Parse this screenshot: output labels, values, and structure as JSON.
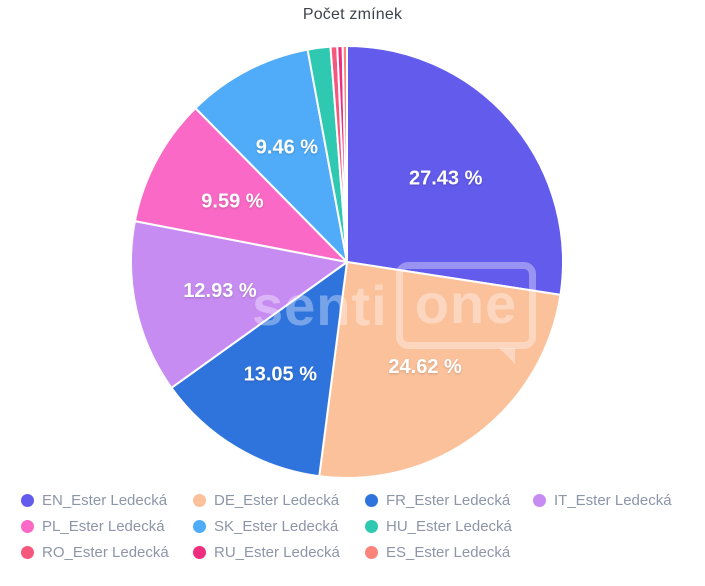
{
  "title": "Počet zmínek",
  "watermark": {
    "part1": "senti",
    "part2": "one"
  },
  "chart_data": {
    "type": "pie",
    "title": "Počet zmínek",
    "unit": "%",
    "legend_position": "bottom",
    "start_angle_deg": 0,
    "direction": "clockwise",
    "segments": [
      {
        "label": "EN_Ester Ledecká",
        "value": 27.43,
        "label_text": "27.43 %",
        "color": "#635BEB"
      },
      {
        "label": "DE_Ester Ledecká",
        "value": 24.62,
        "label_text": "24.62 %",
        "color": "#FAC19B"
      },
      {
        "label": "FR_Ester Ledecká",
        "value": 13.05,
        "label_text": "13.05 %",
        "color": "#2F74DC"
      },
      {
        "label": "IT_Ester Ledecká",
        "value": 12.93,
        "label_text": "12.93 %",
        "color": "#C78CF1"
      },
      {
        "label": "PL_Ester Ledecká",
        "value": 9.59,
        "label_text": "9.59 %",
        "color": "#F969C5"
      },
      {
        "label": "SK_Ester Ledecká",
        "value": 9.46,
        "label_text": "9.46 %",
        "color": "#50ACF8"
      },
      {
        "label": "HU_Ester Ledecká",
        "value": 1.7,
        "label_text": "",
        "color": "#2FC9B1"
      },
      {
        "label": "RO_Ester Ledecká",
        "value": 0.5,
        "label_text": "",
        "color": "#F5587C"
      },
      {
        "label": "RU_Ester Ledecká",
        "value": 0.4,
        "label_text": "",
        "color": "#EE2D7E"
      },
      {
        "label": "ES_Ester Ledecká",
        "value": 0.32,
        "label_text": "",
        "color": "#FA837C"
      }
    ]
  }
}
